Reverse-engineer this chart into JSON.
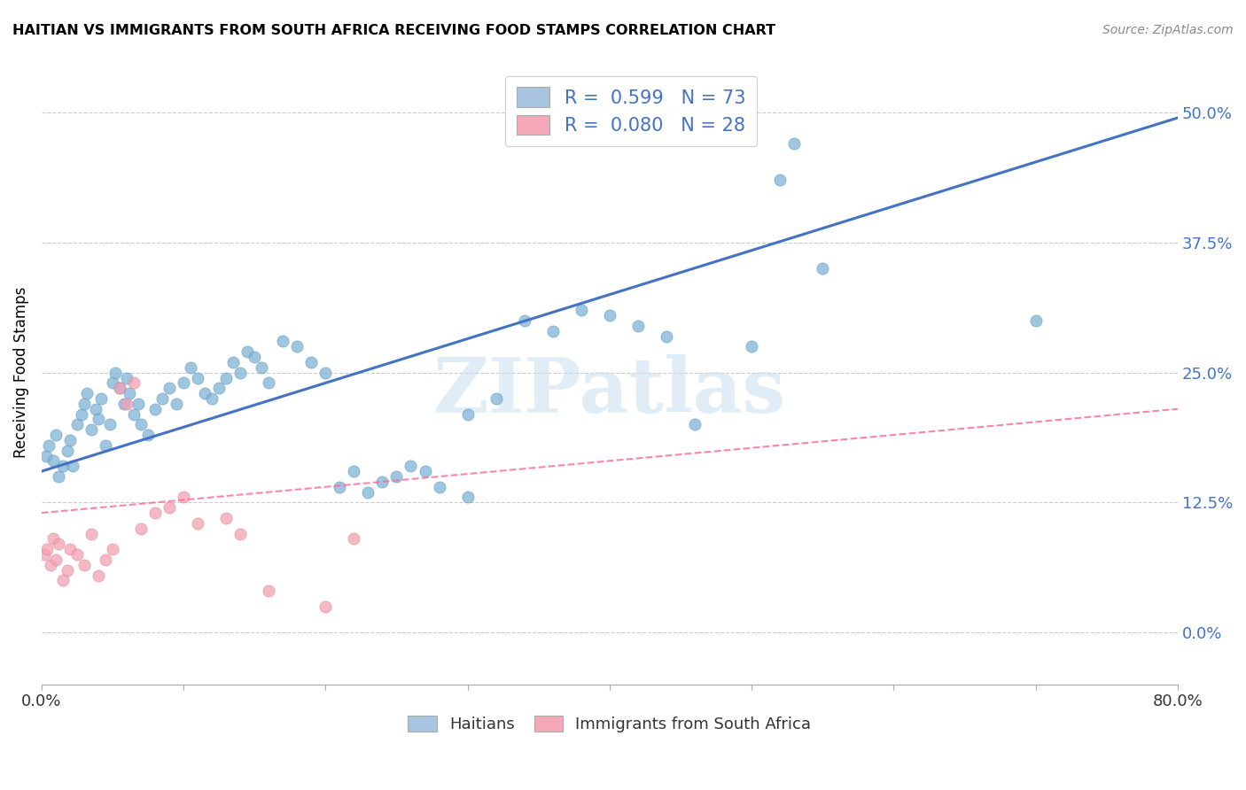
{
  "title": "HAITIAN VS IMMIGRANTS FROM SOUTH AFRICA RECEIVING FOOD STAMPS CORRELATION CHART",
  "source": "Source: ZipAtlas.com",
  "ylabel": "Receiving Food Stamps",
  "ytick_labels": [
    "0.0%",
    "12.5%",
    "25.0%",
    "37.5%",
    "50.0%"
  ],
  "ytick_values": [
    0.0,
    12.5,
    25.0,
    37.5,
    50.0
  ],
  "xlim": [
    0.0,
    80.0
  ],
  "ylim": [
    -5.0,
    55.0
  ],
  "watermark": "ZIPatlas",
  "legend_r1": "0.599",
  "legend_n1": "73",
  "legend_r2": "0.080",
  "legend_n2": "28",
  "legend_label1": "Haitians",
  "legend_label2": "Immigrants from South Africa",
  "blue_color": "#A8C4E0",
  "pink_color": "#F4A8B8",
  "blue_line_color": "#4472C4",
  "pink_line_color": "#FF6699",
  "blue_scatter_color": "#7EB3D8",
  "pink_scatter_color": "#F4A0B0",
  "haitian_x": [
    0.3,
    0.5,
    0.8,
    1.0,
    1.2,
    1.5,
    1.8,
    2.0,
    2.2,
    2.5,
    2.8,
    3.0,
    3.2,
    3.5,
    3.8,
    4.0,
    4.2,
    4.5,
    4.8,
    5.0,
    5.2,
    5.5,
    5.8,
    6.0,
    6.2,
    6.5,
    6.8,
    7.0,
    7.5,
    8.0,
    8.5,
    9.0,
    9.5,
    10.0,
    10.5,
    11.0,
    11.5,
    12.0,
    12.5,
    13.0,
    13.5,
    14.0,
    14.5,
    15.0,
    15.5,
    16.0,
    17.0,
    18.0,
    19.0,
    20.0,
    21.0,
    22.0,
    23.0,
    24.0,
    25.0,
    26.0,
    27.0,
    28.0,
    30.0,
    32.0,
    34.0,
    36.0,
    38.0,
    40.0,
    42.0,
    44.0,
    50.0,
    52.0,
    53.0,
    55.0,
    70.0,
    30.0,
    46.0
  ],
  "haitian_y": [
    17.0,
    18.0,
    16.5,
    19.0,
    15.0,
    16.0,
    17.5,
    18.5,
    16.0,
    20.0,
    21.0,
    22.0,
    23.0,
    19.5,
    21.5,
    20.5,
    22.5,
    18.0,
    20.0,
    24.0,
    25.0,
    23.5,
    22.0,
    24.5,
    23.0,
    21.0,
    22.0,
    20.0,
    19.0,
    21.5,
    22.5,
    23.5,
    22.0,
    24.0,
    25.5,
    24.5,
    23.0,
    22.5,
    23.5,
    24.5,
    26.0,
    25.0,
    27.0,
    26.5,
    25.5,
    24.0,
    28.0,
    27.5,
    26.0,
    25.0,
    14.0,
    15.5,
    13.5,
    14.5,
    15.0,
    16.0,
    15.5,
    14.0,
    21.0,
    22.5,
    30.0,
    29.0,
    31.0,
    30.5,
    29.5,
    28.5,
    27.5,
    43.5,
    47.0,
    35.0,
    30.0,
    13.0,
    20.0
  ],
  "southafrica_x": [
    0.2,
    0.4,
    0.6,
    0.8,
    1.0,
    1.2,
    1.5,
    1.8,
    2.0,
    2.5,
    3.0,
    3.5,
    4.0,
    4.5,
    5.0,
    5.5,
    6.0,
    6.5,
    7.0,
    8.0,
    9.0,
    10.0,
    11.0,
    13.0,
    14.0,
    16.0,
    20.0,
    22.0
  ],
  "southafrica_y": [
    7.5,
    8.0,
    6.5,
    9.0,
    7.0,
    8.5,
    5.0,
    6.0,
    8.0,
    7.5,
    6.5,
    9.5,
    5.5,
    7.0,
    8.0,
    23.5,
    22.0,
    24.0,
    10.0,
    11.5,
    12.0,
    13.0,
    10.5,
    11.0,
    9.5,
    4.0,
    2.5,
    9.0
  ],
  "haitian_line_x": [
    0.0,
    80.0
  ],
  "haitian_line_y": [
    15.5,
    49.5
  ],
  "sa_line_x": [
    0.0,
    80.0
  ],
  "sa_line_y": [
    11.5,
    21.5
  ]
}
